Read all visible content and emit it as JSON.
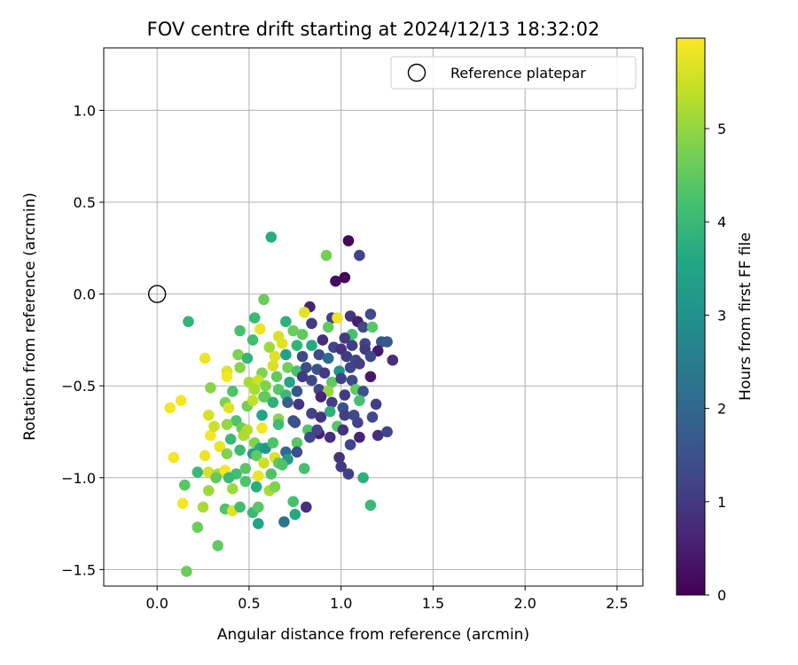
{
  "chart_data": {
    "type": "scatter",
    "title": "FOV centre drift starting at 2024/12/13 18:32:02",
    "xlabel": "Angular distance from reference (arcmin)",
    "ylabel": "Rotation from reference (arcmin)",
    "xlim": [
      -0.29,
      2.64
    ],
    "ylim": [
      -1.59,
      1.34
    ],
    "xticks": [
      0.0,
      0.5,
      1.0,
      1.5,
      2.0,
      2.5
    ],
    "xtick_labels": [
      "0.0",
      "0.5",
      "1.0",
      "1.5",
      "2.0",
      "2.5"
    ],
    "yticks": [
      -1.5,
      -1.0,
      -0.5,
      0.0,
      0.5,
      1.0
    ],
    "ytick_labels": [
      "−1.5",
      "−1.0",
      "−0.5",
      "0.0",
      "0.5",
      "1.0"
    ],
    "grid": true,
    "legend": {
      "placement": "top-right",
      "entries": [
        "Reference platepar"
      ]
    },
    "reference_point": {
      "name": "Reference platepar",
      "x": 0.0,
      "y": 0.0
    },
    "colorbar": {
      "label": "Hours from first FF file",
      "range": [
        0,
        5.97
      ],
      "ticks": [
        0,
        1,
        2,
        3,
        4,
        5
      ],
      "tick_labels": [
        "0",
        "1",
        "2",
        "3",
        "4",
        "5"
      ],
      "colormap": "viridis"
    },
    "points": [
      [
        1.04,
        0.29,
        0.1
      ],
      [
        0.97,
        0.07,
        0.2
      ],
      [
        1.02,
        0.09,
        0.1
      ],
      [
        1.1,
        0.21,
        1.2
      ],
      [
        0.62,
        0.31,
        3.7
      ],
      [
        0.92,
        0.21,
        4.7
      ],
      [
        0.83,
        -0.07,
        0.6
      ],
      [
        0.58,
        -0.03,
        4.6
      ],
      [
        0.17,
        -0.15,
        3.9
      ],
      [
        0.95,
        -0.13,
        1.1
      ],
      [
        1.16,
        -0.11,
        1.4
      ],
      [
        0.8,
        -0.1,
        5.7
      ],
      [
        0.98,
        -0.13,
        5.8
      ],
      [
        1.05,
        -0.12,
        0.9
      ],
      [
        1.09,
        -0.15,
        0.5
      ],
      [
        0.53,
        -0.13,
        4.0
      ],
      [
        0.7,
        -0.15,
        3.8
      ],
      [
        0.84,
        -0.16,
        1.0
      ],
      [
        0.93,
        -0.18,
        4.5
      ],
      [
        1.06,
        -0.22,
        4.2
      ],
      [
        1.12,
        -0.18,
        1.3
      ],
      [
        1.17,
        -0.18,
        4.4
      ],
      [
        0.45,
        -0.2,
        4.2
      ],
      [
        0.56,
        -0.19,
        5.8
      ],
      [
        0.66,
        -0.23,
        5.6
      ],
      [
        0.74,
        -0.2,
        4.6
      ],
      [
        0.79,
        -0.22,
        4.5
      ],
      [
        0.9,
        -0.25,
        0.8
      ],
      [
        1.02,
        -0.24,
        1.0
      ],
      [
        1.13,
        -0.27,
        1.3
      ],
      [
        1.22,
        -0.26,
        1.6
      ],
      [
        1.25,
        -0.26,
        1.7
      ],
      [
        0.52,
        -0.25,
        4.1
      ],
      [
        0.61,
        -0.29,
        5.1
      ],
      [
        0.68,
        -0.27,
        5.7
      ],
      [
        0.76,
        -0.28,
        3.9
      ],
      [
        0.84,
        -0.28,
        3.6
      ],
      [
        0.96,
        -0.29,
        1.2
      ],
      [
        1.0,
        -0.3,
        0.9
      ],
      [
        1.06,
        -0.28,
        1.1
      ],
      [
        1.13,
        -0.3,
        1.0
      ],
      [
        1.2,
        -0.31,
        0.4
      ],
      [
        0.26,
        -0.35,
        5.8
      ],
      [
        0.44,
        -0.33,
        4.8
      ],
      [
        0.49,
        -0.35,
        3.9
      ],
      [
        0.64,
        -0.34,
        5.7
      ],
      [
        0.7,
        -0.33,
        3.4
      ],
      [
        0.79,
        -0.34,
        1.3
      ],
      [
        0.88,
        -0.33,
        1.4
      ],
      [
        0.93,
        -0.35,
        2.1
      ],
      [
        1.03,
        -0.34,
        1.0
      ],
      [
        1.08,
        -0.36,
        1.3
      ],
      [
        1.16,
        -0.34,
        1.3
      ],
      [
        1.28,
        -0.36,
        0.8
      ],
      [
        0.38,
        -0.42,
        5.7
      ],
      [
        0.45,
        -0.4,
        4.9
      ],
      [
        0.57,
        -0.43,
        4.8
      ],
      [
        0.63,
        -0.39,
        5.6
      ],
      [
        0.71,
        -0.4,
        4.7
      ],
      [
        0.76,
        -0.42,
        4.2
      ],
      [
        0.81,
        -0.4,
        1.4
      ],
      [
        0.87,
        -0.41,
        1.5
      ],
      [
        0.91,
        -0.43,
        1.0
      ],
      [
        0.99,
        -0.42,
        3.1
      ],
      [
        1.05,
        -0.4,
        1.2
      ],
      [
        1.1,
        -0.38,
        1.1
      ],
      [
        0.38,
        -0.45,
        5.9
      ],
      [
        0.5,
        -0.48,
        5.2
      ],
      [
        0.55,
        -0.47,
        5.5
      ],
      [
        0.59,
        -0.5,
        4.8
      ],
      [
        0.65,
        -0.45,
        4.5
      ],
      [
        0.72,
        -0.48,
        3.5
      ],
      [
        0.79,
        -0.45,
        1.0
      ],
      [
        0.84,
        -0.47,
        1.3
      ],
      [
        0.95,
        -0.48,
        4.5
      ],
      [
        1.0,
        -0.46,
        1.1
      ],
      [
        1.06,
        -0.47,
        1.4
      ],
      [
        1.16,
        -0.45,
        0.4
      ],
      [
        0.29,
        -0.51,
        4.9
      ],
      [
        0.41,
        -0.53,
        4.3
      ],
      [
        0.53,
        -0.52,
        5.2
      ],
      [
        0.59,
        -0.56,
        4.7
      ],
      [
        0.66,
        -0.52,
        4.4
      ],
      [
        0.7,
        -0.55,
        4.0
      ],
      [
        0.76,
        -0.53,
        1.6
      ],
      [
        0.88,
        -0.52,
        1.3
      ],
      [
        0.93,
        -0.53,
        5.0
      ],
      [
        1.02,
        -0.55,
        1.0
      ],
      [
        1.08,
        -0.52,
        4.5
      ],
      [
        1.12,
        -0.53,
        1.6
      ],
      [
        0.07,
        -0.62,
        5.9
      ],
      [
        0.13,
        -0.58,
        5.9
      ],
      [
        0.37,
        -0.59,
        4.8
      ],
      [
        0.39,
        -0.62,
        5.7
      ],
      [
        0.49,
        -0.61,
        4.7
      ],
      [
        0.52,
        -0.58,
        5.4
      ],
      [
        0.58,
        -0.56,
        4.5
      ],
      [
        0.63,
        -0.59,
        3.8
      ],
      [
        0.71,
        -0.59,
        1.8
      ],
      [
        0.77,
        -0.6,
        0.9
      ],
      [
        0.89,
        -0.56,
        0.6
      ],
      [
        0.95,
        -0.59,
        1.1
      ],
      [
        1.01,
        -0.62,
        1.5
      ],
      [
        1.1,
        -0.58,
        4.2
      ],
      [
        1.19,
        -0.6,
        1.1
      ],
      [
        0.28,
        -0.66,
        5.6
      ],
      [
        0.43,
        -0.69,
        4.3
      ],
      [
        0.57,
        -0.66,
        3.5
      ],
      [
        0.66,
        -0.68,
        4.9
      ],
      [
        0.75,
        -0.7,
        1.4
      ],
      [
        0.84,
        -0.65,
        1.2
      ],
      [
        0.89,
        -0.67,
        0.9
      ],
      [
        0.94,
        -0.64,
        3.8
      ],
      [
        1.02,
        -0.66,
        1.1
      ],
      [
        1.07,
        -0.66,
        1.3
      ],
      [
        1.17,
        -0.67,
        1.3
      ],
      [
        0.29,
        -0.77,
        5.9
      ],
      [
        0.31,
        -0.72,
        5.5
      ],
      [
        0.38,
        -0.71,
        5.0
      ],
      [
        0.46,
        -0.73,
        4.6
      ],
      [
        0.49,
        -0.74,
        5.3
      ],
      [
        0.57,
        -0.73,
        5.9
      ],
      [
        0.66,
        -0.71,
        4.1
      ],
      [
        0.74,
        -0.69,
        1.5
      ],
      [
        0.82,
        -0.74,
        4.3
      ],
      [
        0.88,
        -0.76,
        0.5
      ],
      [
        0.98,
        -0.72,
        4.4
      ],
      [
        1.01,
        -0.74,
        0.9
      ],
      [
        1.09,
        -0.7,
        1.2
      ],
      [
        1.2,
        -0.77,
        0.8
      ],
      [
        1.25,
        -0.75,
        1.2
      ],
      [
        0.34,
        -0.83,
        5.8
      ],
      [
        0.4,
        -0.79,
        4.0
      ],
      [
        0.47,
        -0.77,
        5.2
      ],
      [
        0.53,
        -0.81,
        4.8
      ],
      [
        0.56,
        -0.84,
        3.6
      ],
      [
        0.59,
        -0.84,
        3.2
      ],
      [
        0.63,
        -0.81,
        4.3
      ],
      [
        0.7,
        -0.86,
        2.0
      ],
      [
        0.76,
        -0.81,
        4.4
      ],
      [
        0.83,
        -0.78,
        1.3
      ],
      [
        0.87,
        -0.74,
        1.2
      ],
      [
        0.94,
        -0.78,
        0.8
      ],
      [
        1.05,
        -0.82,
        1.2
      ],
      [
        1.1,
        -0.78,
        0.6
      ],
      [
        0.09,
        -0.89,
        5.9
      ],
      [
        0.26,
        -0.88,
        5.8
      ],
      [
        0.38,
        -0.87,
        4.8
      ],
      [
        0.45,
        -0.85,
        4.0
      ],
      [
        0.52,
        -0.87,
        3.3
      ],
      [
        0.54,
        -0.88,
        4.5
      ],
      [
        0.58,
        -0.92,
        5.5
      ],
      [
        0.64,
        -0.89,
        5.7
      ],
      [
        0.66,
        -0.92,
        4.5
      ],
      [
        0.71,
        -0.9,
        3.3
      ],
      [
        0.76,
        -0.86,
        1.4
      ],
      [
        0.99,
        -0.89,
        0.9
      ],
      [
        0.22,
        -0.97,
        4.0
      ],
      [
        0.28,
        -0.97,
        5.6
      ],
      [
        0.33,
        -0.98,
        5.2
      ],
      [
        0.37,
        -0.96,
        5.9
      ],
      [
        0.43,
        -0.98,
        4.1
      ],
      [
        0.48,
        -0.95,
        4.4
      ],
      [
        0.55,
        -0.99,
        5.8
      ],
      [
        0.62,
        -0.98,
        4.3
      ],
      [
        0.68,
        -0.93,
        4.3
      ],
      [
        0.8,
        -0.95,
        4.2
      ],
      [
        1.0,
        -0.94,
        1.0
      ],
      [
        1.04,
        -0.98,
        1.1
      ],
      [
        1.12,
        -1.0,
        3.8
      ],
      [
        0.15,
        -1.04,
        4.4
      ],
      [
        0.28,
        -1.07,
        5.1
      ],
      [
        0.32,
        -1.0,
        4.5
      ],
      [
        0.39,
        -1.0,
        4.0
      ],
      [
        0.41,
        -1.06,
        5.1
      ],
      [
        0.48,
        -1.02,
        4.3
      ],
      [
        0.54,
        -1.05,
        3.7
      ],
      [
        0.61,
        -1.07,
        5.2
      ],
      [
        0.64,
        -1.05,
        4.8
      ],
      [
        0.25,
        -1.16,
        5.2
      ],
      [
        0.14,
        -1.14,
        5.9
      ],
      [
        0.37,
        -1.17,
        4.3
      ],
      [
        0.41,
        -1.18,
        5.7
      ],
      [
        0.45,
        -1.16,
        4.1
      ],
      [
        0.52,
        -1.19,
        4.0
      ],
      [
        0.55,
        -1.16,
        4.4
      ],
      [
        0.74,
        -1.13,
        4.2
      ],
      [
        0.75,
        -1.2,
        3.6
      ],
      [
        0.81,
        -1.16,
        0.8
      ],
      [
        1.16,
        -1.15,
        4.0
      ],
      [
        0.22,
        -1.27,
        4.6
      ],
      [
        0.55,
        -1.25,
        3.5
      ],
      [
        0.69,
        -1.24,
        2.3
      ],
      [
        0.33,
        -1.37,
        4.5
      ],
      [
        0.16,
        -1.51,
        4.6
      ]
    ]
  }
}
